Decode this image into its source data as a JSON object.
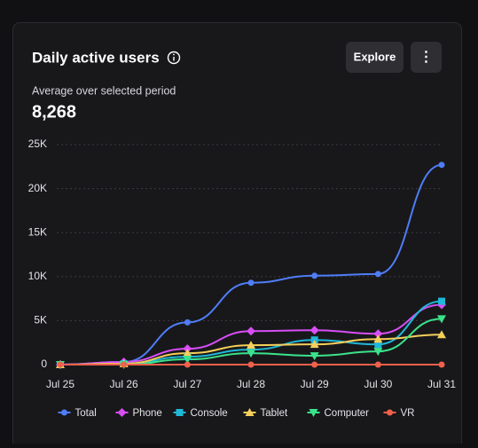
{
  "chart_data": {
    "type": "line",
    "title": "Daily active users",
    "subtitle": "Average over selected period",
    "average": "8,268",
    "buttons": {
      "explore": "Explore",
      "more": "⋮"
    },
    "categories": [
      "Jul 25",
      "Jul 26",
      "Jul 27",
      "Jul 28",
      "Jul 29",
      "Jul 30",
      "Jul 31"
    ],
    "series": [
      {
        "name": "Total",
        "color": "#4f7df7",
        "marker": "circle",
        "values": [
          0,
          300,
          4800,
          9300,
          10100,
          10300,
          22700
        ]
      },
      {
        "name": "Phone",
        "color": "#d84ef5",
        "marker": "diamond",
        "values": [
          0,
          300,
          1800,
          3800,
          3900,
          3500,
          6800
        ]
      },
      {
        "name": "Console",
        "color": "#1fb8d8",
        "marker": "square",
        "values": [
          0,
          100,
          900,
          1700,
          2800,
          2300,
          7200
        ]
      },
      {
        "name": "Tablet",
        "color": "#f5cf5a",
        "marker": "triangle",
        "values": [
          0,
          100,
          1300,
          2200,
          2300,
          2900,
          3400
        ]
      },
      {
        "name": "Computer",
        "color": "#3be38a",
        "marker": "triangle-down",
        "values": [
          0,
          0,
          600,
          1300,
          1000,
          1500,
          5200
        ]
      },
      {
        "name": "VR",
        "color": "#f0604a",
        "marker": "circle",
        "values": [
          0,
          0,
          0,
          0,
          0,
          0,
          0
        ]
      }
    ],
    "ylim": [
      0,
      25000
    ],
    "yticks": [
      0,
      {
        "value": 5000,
        "label": "5K"
      },
      {
        "value": 10000,
        "label": "10K"
      },
      {
        "value": 15000,
        "label": "15K"
      },
      {
        "value": 20000,
        "label": "20K"
      },
      {
        "value": 25000,
        "label": "25K"
      }
    ],
    "grid": true
  }
}
